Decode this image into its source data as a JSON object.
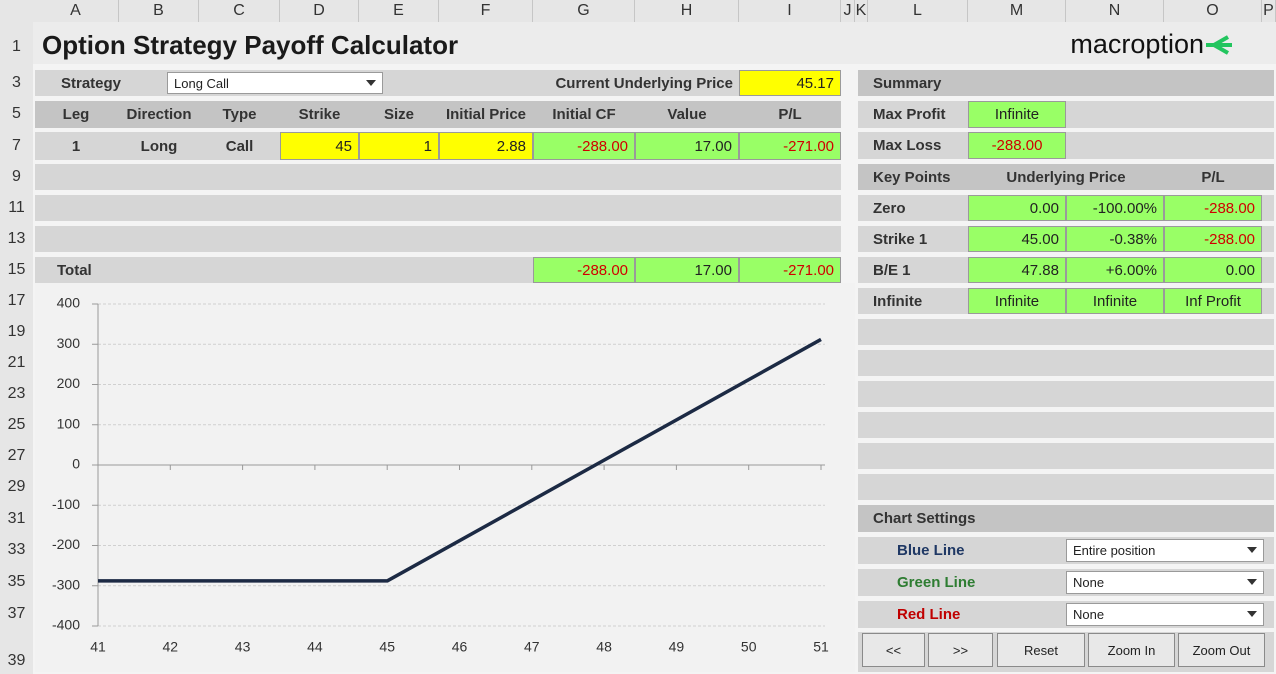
{
  "sheet": {
    "columns": [
      "A",
      "B",
      "C",
      "D",
      "E",
      "F",
      "G",
      "H",
      "I",
      "J",
      "K",
      "L",
      "M",
      "N",
      "O",
      "P"
    ],
    "rows": [
      "1",
      "3",
      "5",
      "7",
      "9",
      "11",
      "13",
      "15",
      "17",
      "19",
      "21",
      "23",
      "25",
      "27",
      "29",
      "31",
      "33",
      "35",
      "37",
      "39"
    ]
  },
  "header": {
    "title": "Option Strategy Payoff Calculator",
    "logo": "macroption"
  },
  "strategy": {
    "label": "Strategy",
    "value": "Long Call",
    "price_label": "Current Underlying Price",
    "price": "45.17"
  },
  "legs": {
    "columns": [
      "Leg",
      "Direction",
      "Type",
      "Strike",
      "Size",
      "Initial Price",
      "Initial CF",
      "Value",
      "P/L"
    ],
    "rows": [
      [
        "1",
        "Long",
        "Call",
        "45",
        "1",
        "2.88",
        "-288.00",
        "17.00",
        "-271.00"
      ]
    ],
    "total": {
      "label": "Total",
      "values": [
        "-288.00",
        "17.00",
        "-271.00"
      ]
    }
  },
  "summary": {
    "title": "Summary",
    "rows": [
      [
        "Max Profit",
        "Infinite"
      ],
      [
        "Max Loss",
        "-288.00"
      ]
    ]
  },
  "key_points": {
    "columns": [
      "Key Points",
      "Underlying Price",
      "P/L"
    ],
    "rows": [
      [
        "Zero",
        "0.00",
        "-100.00%",
        "-288.00"
      ],
      [
        "Strike 1",
        "45.00",
        "-0.38%",
        "-288.00"
      ],
      [
        "B/E 1",
        "47.88",
        "+6.00%",
        "0.00"
      ],
      [
        "Infinite",
        "Infinite",
        "Infinite",
        "Inf Profit"
      ]
    ]
  },
  "chart_settings": {
    "title": "Chart Settings",
    "rows": [
      [
        "Blue Line",
        "Entire position"
      ],
      [
        "Green Line",
        "None"
      ],
      [
        "Red Line",
        "None"
      ]
    ]
  },
  "buttons": [
    "<<",
    ">>",
    "Reset",
    "Zoom In",
    "Zoom Out"
  ],
  "chart_data": {
    "type": "line",
    "x": [
      41,
      45,
      51
    ],
    "values": [
      -288,
      -288,
      312
    ],
    "color": "#1c2a44",
    "xlim": [
      41,
      51
    ],
    "ylim": [
      -400,
      400
    ],
    "xticks": [
      41,
      42,
      43,
      44,
      45,
      46,
      47,
      48,
      49,
      50,
      51
    ],
    "yticks": [
      -400,
      -300,
      -200,
      -100,
      0,
      100,
      200,
      300,
      400
    ],
    "grid": true
  }
}
